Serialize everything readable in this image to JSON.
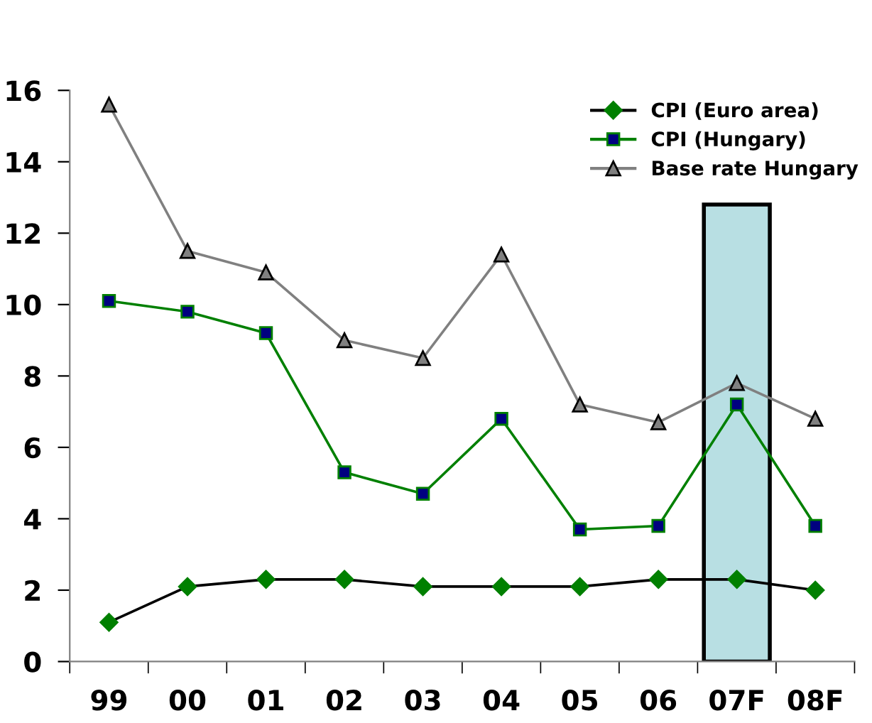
{
  "chart_data": {
    "type": "line",
    "categories": [
      "99",
      "00",
      "01",
      "02",
      "03",
      "04",
      "05",
      "06",
      "07F",
      "08F"
    ],
    "series": [
      {
        "name": "CPI (Euro area)",
        "color": "#000000",
        "marker": "diamond",
        "values": [
          1.1,
          2.1,
          2.3,
          2.3,
          2.1,
          2.1,
          2.1,
          2.3,
          2.3,
          2.0
        ]
      },
      {
        "name": "CPI (Hungary)",
        "color": "#008000",
        "marker": "square",
        "values": [
          10.1,
          9.8,
          9.2,
          5.3,
          4.7,
          6.8,
          3.7,
          3.8,
          7.2,
          3.8
        ]
      },
      {
        "name": "Base rate Hungary",
        "color": "#808080",
        "marker": "triangle",
        "values": [
          15.6,
          11.5,
          10.9,
          9.0,
          8.5,
          11.4,
          7.2,
          6.7,
          7.8,
          6.8
        ]
      }
    ],
    "ylim": [
      0,
      16
    ],
    "yticks": [
      0,
      2,
      4,
      6,
      8,
      10,
      12,
      14,
      16
    ],
    "grid": false,
    "legend": "top right",
    "bands": [
      {
        "axis": "x",
        "from": "07F",
        "to": "07F",
        "color": "#b8dfe3"
      }
    ]
  }
}
